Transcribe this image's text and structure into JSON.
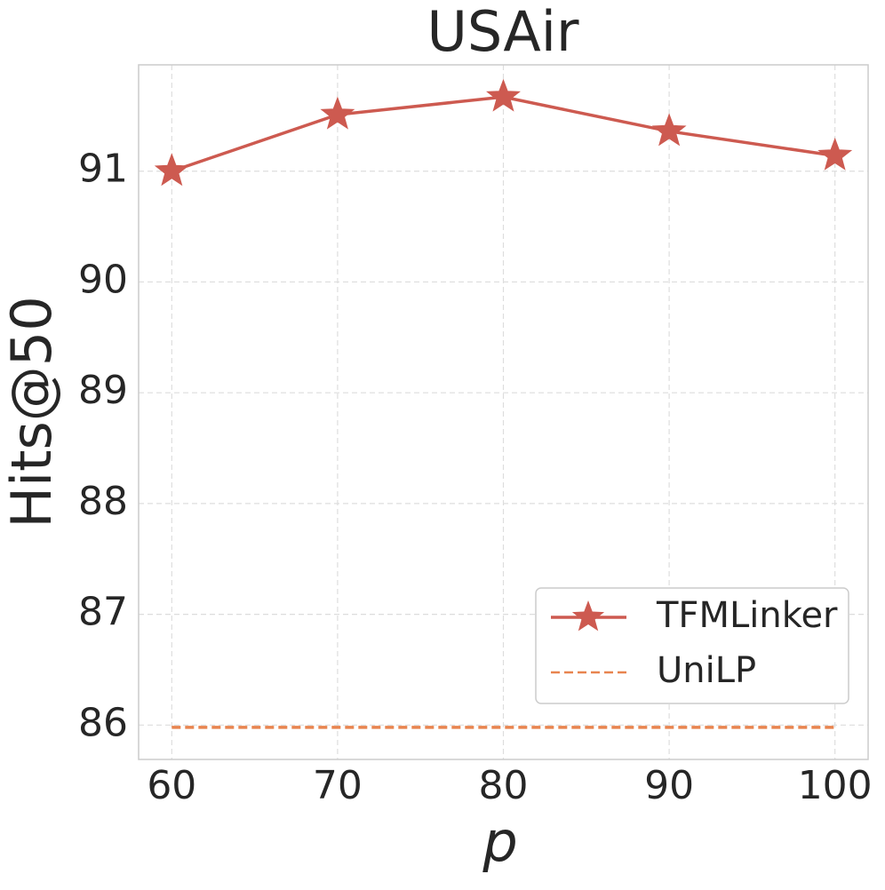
{
  "chart_data": {
    "type": "line",
    "title": "USAir",
    "x_label": "p",
    "y_label": "Hits@50",
    "x": [
      60,
      70,
      80,
      90,
      100
    ],
    "series": [
      {
        "name": "TFMLinker",
        "color": "#cd5a50",
        "marker": "star",
        "values": [
          91.0,
          91.51,
          91.67,
          91.36,
          91.14
        ]
      },
      {
        "name": "UniLP",
        "color": "#e8844f",
        "dashed": true,
        "values": [
          85.98,
          85.98,
          85.98,
          85.98,
          85.98
        ]
      }
    ],
    "xlim": [
      58,
      102
    ],
    "xticks": [
      60,
      70,
      80,
      90,
      100
    ],
    "ylim": [
      85.69,
      91.96
    ],
    "yticks": [
      86,
      87,
      88,
      89,
      90,
      91
    ],
    "grid": true,
    "legend": "lower right"
  }
}
